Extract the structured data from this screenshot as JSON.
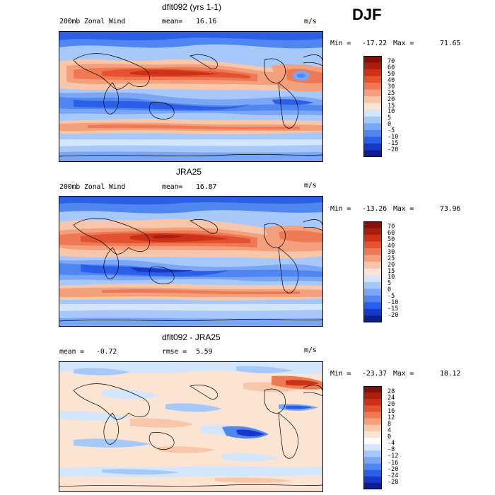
{
  "season": "DJF",
  "colors": {
    "full": [
      "#0a1f8c",
      "#1637c8",
      "#2b5fe8",
      "#4f86f0",
      "#7aa6f5",
      "#a6c8fa",
      "#d4e6fc",
      "#fbe4d2",
      "#f8c6a8",
      "#f4a07c",
      "#ee7a55",
      "#e35332",
      "#cc3216",
      "#a91e0e",
      "#841008"
    ],
    "diff": [
      "#0a1f8c",
      "#1637c8",
      "#2b5fe8",
      "#4f86f0",
      "#7aa6f5",
      "#a6c8fa",
      "#d4e6fc",
      "#ffffff",
      "#fbe4d2",
      "#f8c6a8",
      "#f4a07c",
      "#ee7a55",
      "#e35332",
      "#cc3216",
      "#a91e0e",
      "#841008"
    ]
  },
  "panels": [
    {
      "id": "model",
      "title": "dflt092 (yrs 1-1)",
      "left_text": "200mb Zonal Wind",
      "mean_label": "mean=",
      "mean_value": "16.16",
      "units": "m/s",
      "min_label": "Min =",
      "min_value": "-17.22",
      "max_label": "Max =",
      "max_value": "71.65",
      "colorbar_labels": [
        "70",
        "60",
        "50",
        "40",
        "30",
        "25",
        "20",
        "15",
        "10",
        "5",
        "0",
        "-5",
        "-10",
        "-15",
        "-20"
      ]
    },
    {
      "id": "obs",
      "title": "JRA25",
      "left_text": "200mb Zonal Wind",
      "mean_label": "mean=",
      "mean_value": "16.87",
      "units": "m/s",
      "min_label": "Min =",
      "min_value": "-13.26",
      "max_label": "Max =",
      "max_value": "73.96",
      "colorbar_labels": [
        "70",
        "60",
        "50",
        "40",
        "30",
        "25",
        "20",
        "15",
        "10",
        "5",
        "0",
        "-5",
        "-10",
        "-15",
        "-20"
      ]
    },
    {
      "id": "diff",
      "title": "dflt092 - JRA25",
      "left_text": "mean =",
      "mean_value": "-0.72",
      "rmse_label": "rmse =",
      "rmse_value": "5.59",
      "units": "m/s",
      "min_label": "Min =",
      "min_value": "-23.37",
      "max_label": "Max =",
      "max_value": "18.12",
      "colorbar_labels": [
        "28",
        "24",
        "20",
        "16",
        "12",
        "8",
        "4",
        "0",
        "-4",
        "-8",
        "-12",
        "-16",
        "-20",
        "-24",
        "-28"
      ]
    }
  ],
  "chart_data": [
    {
      "type": "heatmap",
      "title": "dflt092 (yrs 1-1)",
      "variable": "200mb Zonal Wind",
      "units": "m/s",
      "mean": 16.16,
      "min": -17.22,
      "max": 71.65,
      "colorbar_levels": [
        -20,
        -15,
        -10,
        -5,
        0,
        5,
        10,
        15,
        20,
        25,
        30,
        40,
        50,
        60,
        70
      ]
    },
    {
      "type": "heatmap",
      "title": "JRA25",
      "variable": "200mb Zonal Wind",
      "units": "m/s",
      "mean": 16.87,
      "min": -13.26,
      "max": 73.96,
      "colorbar_levels": [
        -20,
        -15,
        -10,
        -5,
        0,
        5,
        10,
        15,
        20,
        25,
        30,
        40,
        50,
        60,
        70
      ]
    },
    {
      "type": "heatmap",
      "title": "dflt092 - JRA25",
      "units": "m/s",
      "mean": -0.72,
      "rmse": 5.59,
      "min": -23.37,
      "max": 18.12,
      "colorbar_levels": [
        -28,
        -24,
        -20,
        -16,
        -12,
        -8,
        -4,
        0,
        4,
        8,
        12,
        16,
        20,
        24,
        28
      ]
    }
  ]
}
